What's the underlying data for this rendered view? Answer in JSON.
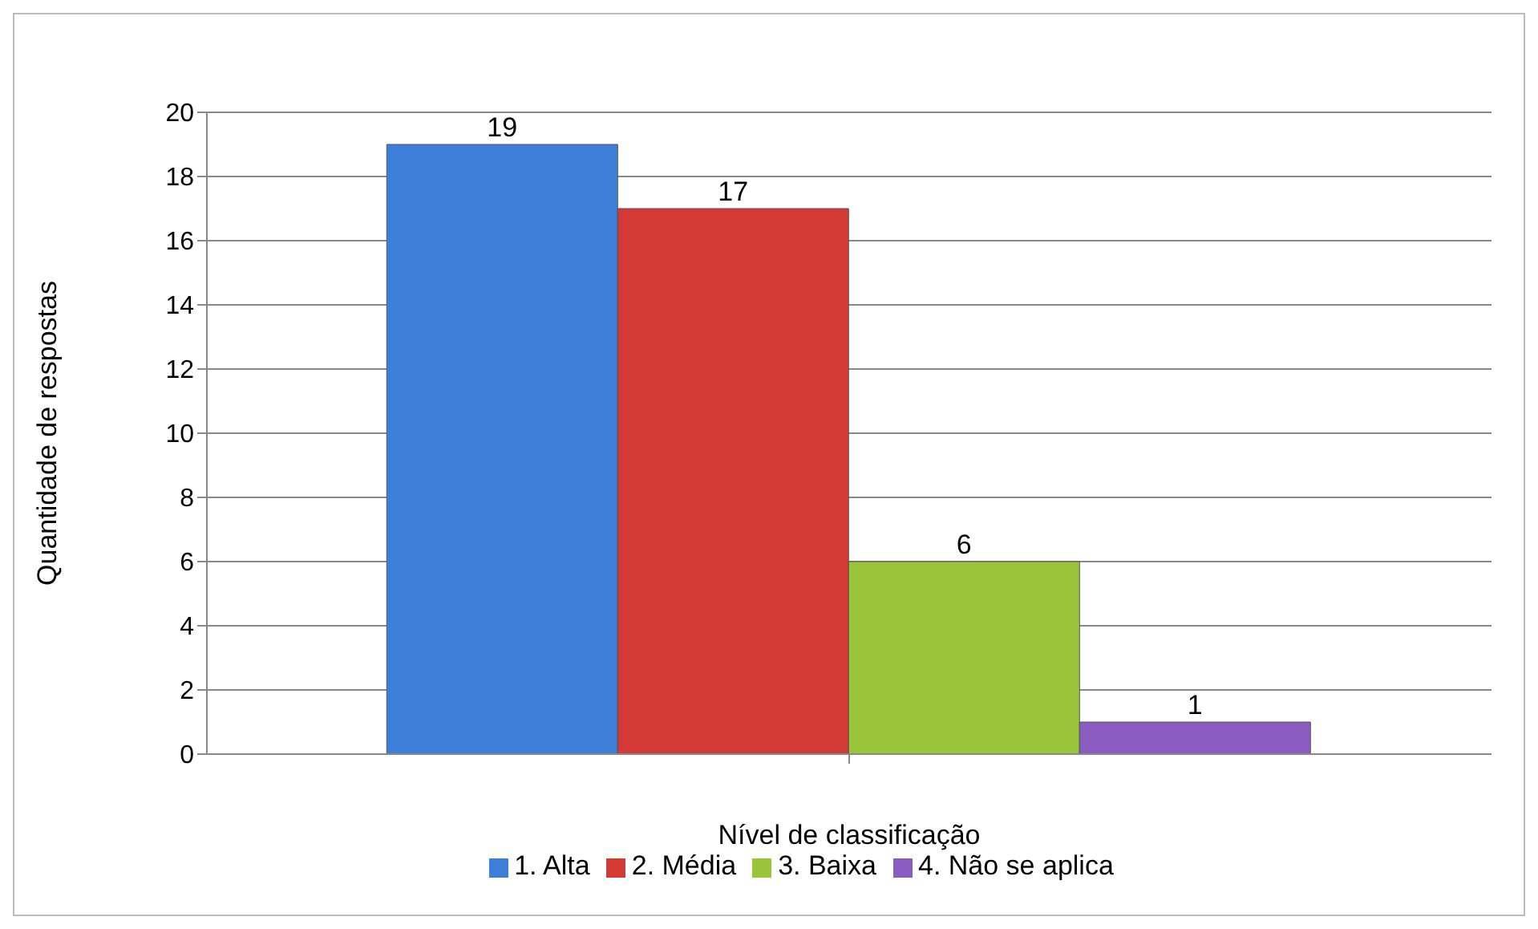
{
  "chart_data": {
    "type": "bar",
    "categories": [
      null
    ],
    "xlabel": "Nível de classificação",
    "ylabel": "Quantidade de respostas",
    "series": [
      {
        "name": "1. Alta",
        "color": "#3d7fd8",
        "values": [
          19
        ]
      },
      {
        "name": "2. Média",
        "color": "#d33a35",
        "values": [
          17
        ]
      },
      {
        "name": "3. Baixa",
        "color": "#9ac43a",
        "values": [
          6
        ]
      },
      {
        "name": "4. Não se aplica",
        "color": "#8a5cc2",
        "values": [
          1
        ]
      }
    ],
    "ylim": [
      0,
      20
    ],
    "yticks": [
      0,
      2,
      4,
      6,
      8,
      10,
      12,
      14,
      16,
      18,
      20
    ],
    "grid": "y",
    "legend": "bottom",
    "data_labels": true
  }
}
